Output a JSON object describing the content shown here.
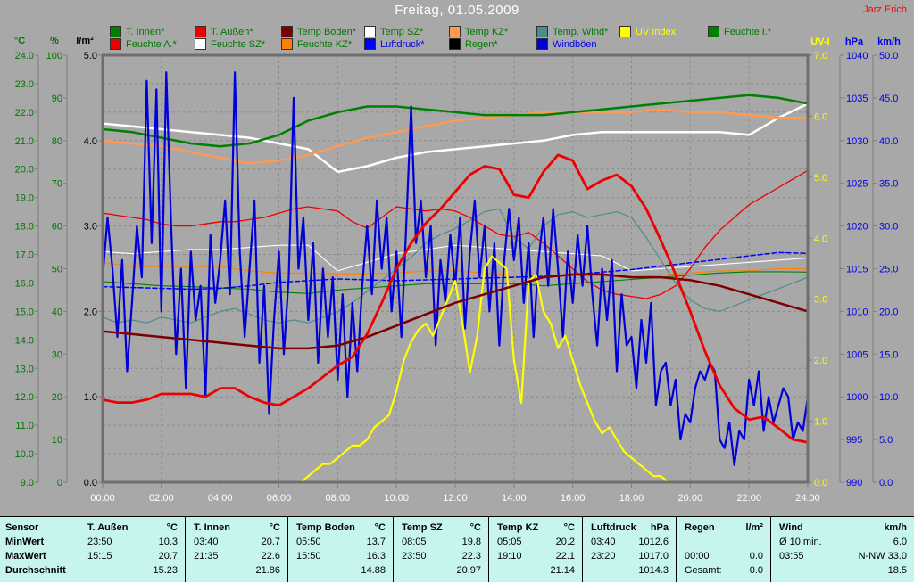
{
  "title": "Freitag, 01.05.2009",
  "watermark": "Jarz Erich",
  "colors": {
    "background": "#A8A8A8",
    "plot_border": "#6E6E6E",
    "grid": "#8A8A8A",
    "axis_line": "#7E7E7E",
    "x_label": "#FFFFFF",
    "legend_text": "#007800",
    "table_bg": "#C6F5EE",
    "title_text": "#FFFFFF",
    "watermark_text": "#FF0000"
  },
  "legend": {
    "rows": [
      [
        {
          "label": "T. Innen*",
          "color": "#008000",
          "text_color": "#007800"
        },
        {
          "label": "T. Außen*",
          "color": "#EE0000",
          "text_color": "#007800"
        },
        {
          "label": "Temp Boden*",
          "color": "#7C0000",
          "text_color": "#007800"
        },
        {
          "label": "Temp SZ*",
          "color": "#FFFFFF",
          "text_color": "#007800"
        },
        {
          "label": "Temp KZ*",
          "color": "#FF9955",
          "text_color": "#007800"
        },
        {
          "label": "Temp. Wind*",
          "color": "#4E8C8C",
          "text_color": "#007800"
        },
        {
          "label": "UV Index",
          "color": "#FFFF00",
          "text_color": "#FFFF00"
        },
        {
          "label": "Feuchte I.*",
          "color": "#008000",
          "text_color": "#007800"
        }
      ],
      [
        {
          "label": "Feuchte A.*",
          "color": "#EE0000",
          "text_color": "#007800"
        },
        {
          "label": "Feuchte SZ*",
          "color": "#FFFFFF",
          "text_color": "#007800"
        },
        {
          "label": "Feuchte KZ*",
          "color": "#FF8000",
          "text_color": "#007800"
        },
        {
          "label": "Luftdruck*",
          "color": "#0000FF",
          "text_color": "#0000E8"
        },
        {
          "label": "Regen*",
          "color": "#000000",
          "text_color": "#007800"
        },
        {
          "label": "Windböen",
          "color": "#0000D8",
          "text_color": "#0000E8"
        }
      ]
    ]
  },
  "chart_data": {
    "type": "line",
    "title": "Freitag, 01.05.2009",
    "grid": {
      "horizontal_follows": "tempC",
      "vertical_every_hours": 2,
      "dashed": true
    },
    "x_axis": {
      "min": 0,
      "max": 24,
      "step": 2,
      "labels": [
        "00:00",
        "02:00",
        "04:00",
        "06:00",
        "08:00",
        "10:00",
        "12:00",
        "14:00",
        "16:00",
        "18:00",
        "20:00",
        "22:00",
        "24:00"
      ]
    },
    "axes": {
      "tempC": {
        "header": "°C",
        "min": 9,
        "max": 24,
        "step": 1,
        "decimals": 1,
        "color": "#007800"
      },
      "pct": {
        "header": "%",
        "min": 0,
        "max": 100,
        "step": 10,
        "decimals": 0,
        "color": "#007800"
      },
      "lm2": {
        "header": "l/m²",
        "min": 0,
        "max": 5,
        "step": 1,
        "decimals": 1,
        "color": "#000000"
      },
      "uv": {
        "header": "UV-I",
        "min": 0,
        "max": 7,
        "step": 1,
        "decimals": 1,
        "color": "#FFFF00"
      },
      "hpa": {
        "header": "hPa",
        "min": 990,
        "max": 1040,
        "step": 5,
        "decimals": 0,
        "color": "#0000E8"
      },
      "kmh": {
        "header": "km/h",
        "min": 0,
        "max": 50,
        "step": 5,
        "decimals": 1,
        "color": "#0000E8"
      }
    },
    "series": [
      {
        "name": "Regen",
        "axis": "lm2",
        "color": "#000000",
        "width": 1.5,
        "interval_min": 1440,
        "values": [
          0,
          0
        ]
      },
      {
        "name": "Feuchte I.",
        "axis": "pct",
        "color": "#008000",
        "width": 1.1,
        "interval_min": 60,
        "values": [
          47,
          46.5,
          46,
          45.8,
          45.5,
          45.2,
          44.5,
          44.2,
          45,
          45.5,
          46,
          46.5,
          46.5,
          46.5,
          46.5,
          46,
          46.5,
          47,
          47.5,
          48,
          48.5,
          49,
          49.3,
          49.3,
          49.2
        ]
      },
      {
        "name": "Feuchte SZ",
        "axis": "pct",
        "color": "#FFFFFF",
        "width": 1.1,
        "interval_min": 60,
        "values": [
          54,
          53.5,
          54,
          54.5,
          54.5,
          55,
          55.5,
          55.5,
          49.5,
          51.5,
          53.5,
          54.5,
          55.5,
          55,
          54.5,
          54,
          53.5,
          53,
          49.5,
          50,
          50.5,
          51,
          51.5,
          52,
          52.5
        ]
      },
      {
        "name": "Feuchte KZ",
        "axis": "pct",
        "color": "#FF8000",
        "width": 1.1,
        "interval_min": 60,
        "values": [
          51.5,
          50.5,
          50.5,
          50.5,
          50.5,
          49.5,
          49,
          49,
          48.8,
          48.8,
          49,
          49.5,
          49.5,
          49,
          48.5,
          48.5,
          48.3,
          48.3,
          48,
          48.5,
          49,
          49.5,
          49.5,
          50,
          50
        ]
      },
      {
        "name": "Feuchte A.",
        "axis": "pct",
        "color": "#EE0000",
        "width": 1.3,
        "interval_min": 30,
        "values": [
          63,
          62.5,
          62,
          61.5,
          60.5,
          60,
          60,
          60.5,
          61,
          61,
          61.5,
          62,
          63,
          64,
          64.5,
          64,
          63.5,
          61,
          59.5,
          62,
          64.5,
          64,
          63.5,
          64,
          63.5,
          62,
          60,
          58,
          57.5,
          58.5,
          56,
          53,
          50,
          47,
          45,
          44,
          43.5,
          43,
          44,
          46,
          50,
          55,
          59,
          62,
          65,
          67,
          69,
          71,
          73
        ]
      },
      {
        "name": "Luftdruck",
        "axis": "hpa",
        "color": "#0000FF",
        "width": 1.5,
        "dash": "5 3",
        "interval_min": 60,
        "values": [
          1012.9,
          1012.8,
          1012.7,
          1012.6,
          1012.7,
          1013.0,
          1013.4,
          1013.6,
          1013.8,
          1013.7,
          1013.6,
          1013.7,
          1013.8,
          1013.9,
          1014.0,
          1014.1,
          1014.3,
          1014.6,
          1014.9,
          1015.3,
          1015.7,
          1016.1,
          1016.5,
          1016.9,
          1016.8
        ]
      },
      {
        "name": "Temp. Wind",
        "axis": "tempC",
        "color": "#4E8C8C",
        "width": 1.2,
        "interval_min": 30,
        "values": [
          14.8,
          14.6,
          14.7,
          14.6,
          14.8,
          14.7,
          14.6,
          14.8,
          15.0,
          15.1,
          14.9,
          14.7,
          14.6,
          14.7,
          14.6,
          14.8,
          15.0,
          15.3,
          15.7,
          16.1,
          16.5,
          16.9,
          17.4,
          17.7,
          17.9,
          18.2,
          18.5,
          18.6,
          17.6,
          17.2,
          18.0,
          18.4,
          18.5,
          18.3,
          18.4,
          18.5,
          18.3,
          17.6,
          16.8,
          16.0,
          15.4,
          15.1,
          15.0,
          15.2,
          15.4,
          15.6,
          15.8,
          16.0,
          16.2
        ]
      },
      {
        "name": "Temp SZ",
        "axis": "tempC",
        "color": "#FFFFFF",
        "width": 2.5,
        "interval_min": 60,
        "values": [
          21.6,
          21.5,
          21.4,
          21.3,
          21.2,
          21.1,
          20.9,
          20.7,
          19.9,
          20.1,
          20.4,
          20.6,
          20.7,
          20.8,
          20.9,
          21.0,
          21.2,
          21.3,
          21.3,
          21.3,
          21.3,
          21.3,
          21.2,
          21.8,
          22.3
        ]
      },
      {
        "name": "Temp KZ",
        "axis": "tempC",
        "color": "#FF9955",
        "width": 2.5,
        "interval_min": 60,
        "values": [
          21.0,
          20.9,
          20.8,
          20.6,
          20.4,
          20.2,
          20.3,
          20.5,
          20.8,
          21.1,
          21.3,
          21.5,
          21.7,
          21.8,
          21.9,
          22.0,
          22.0,
          22.0,
          22.0,
          22.1,
          22.0,
          22.0,
          21.9,
          21.8,
          21.8
        ]
      },
      {
        "name": "T. Innen",
        "axis": "tempC",
        "color": "#008000",
        "width": 2.5,
        "interval_min": 60,
        "values": [
          21.4,
          21.3,
          21.1,
          20.9,
          20.8,
          20.9,
          21.2,
          21.7,
          22.0,
          22.2,
          22.2,
          22.1,
          22.0,
          21.9,
          21.9,
          21.9,
          22.0,
          22.1,
          22.2,
          22.3,
          22.4,
          22.5,
          22.6,
          22.5,
          22.3
        ]
      },
      {
        "name": "Windböen",
        "axis": "kmh",
        "color": "#0000D8",
        "width": 2.2,
        "interval_min": 10,
        "values": [
          24,
          31,
          25,
          17,
          26,
          13,
          21,
          30,
          24,
          47,
          28,
          46,
          20,
          48,
          30,
          15,
          25,
          11,
          27,
          19,
          23,
          10,
          29,
          21,
          26,
          33,
          22,
          48,
          27,
          17,
          25,
          33,
          14,
          23,
          8,
          19,
          27,
          15,
          24,
          45,
          25,
          31,
          19,
          28,
          14,
          25,
          17,
          24,
          12,
          22,
          10,
          21,
          13,
          23,
          30,
          22,
          33,
          25,
          31,
          20,
          27,
          17,
          30,
          44,
          28,
          33,
          24,
          30,
          16,
          26,
          21,
          29,
          23,
          31,
          18,
          27,
          33,
          24,
          30,
          20,
          28,
          16,
          26,
          32,
          26,
          31,
          21,
          28,
          17,
          26,
          31,
          23,
          32,
          25,
          17,
          27,
          21,
          29,
          23,
          30,
          22,
          16,
          25,
          19,
          26,
          13,
          22,
          16,
          17,
          11,
          19,
          14,
          21,
          9,
          13,
          14,
          9,
          12,
          5,
          8,
          7,
          11,
          13,
          12,
          14,
          13,
          5,
          4,
          7,
          2,
          6,
          5,
          12,
          9,
          13,
          6,
          10,
          7,
          9,
          11,
          10,
          5,
          7,
          6,
          10
        ]
      },
      {
        "name": "UV Index",
        "axis": "uv",
        "color": "#FFFF00",
        "width": 2.2,
        "interval_min": 15,
        "values": [
          0,
          0,
          0,
          0,
          0,
          0,
          0,
          0,
          0,
          0,
          0,
          0,
          0,
          0,
          0,
          0,
          0,
          0,
          0,
          0,
          0,
          0,
          0,
          0,
          0,
          0,
          0,
          0,
          0.1,
          0.2,
          0.3,
          0.3,
          0.4,
          0.5,
          0.6,
          0.6,
          0.7,
          0.9,
          1.0,
          1.1,
          1.5,
          2.0,
          2.3,
          2.5,
          2.6,
          2.4,
          2.7,
          3.0,
          3.3,
          2.6,
          1.8,
          2.4,
          3.5,
          3.7,
          3.6,
          3.5,
          2.0,
          1.3,
          3.3,
          3.4,
          2.8,
          2.6,
          2.2,
          2.4,
          2.0,
          1.6,
          1.3,
          1.0,
          0.8,
          0.9,
          0.7,
          0.5,
          0.4,
          0.3,
          0.2,
          0.1,
          0.1,
          0,
          0,
          0,
          0,
          0,
          0,
          0,
          0,
          0,
          0,
          0,
          0,
          0,
          0,
          0,
          0,
          0,
          0,
          0,
          0
        ]
      },
      {
        "name": "Temp Boden",
        "axis": "tempC",
        "color": "#7C0000",
        "width": 2.5,
        "interval_min": 60,
        "values": [
          14.3,
          14.2,
          14.1,
          14.0,
          13.9,
          13.8,
          13.7,
          13.7,
          13.8,
          14.1,
          14.5,
          14.9,
          15.3,
          15.6,
          15.9,
          16.2,
          16.3,
          16.3,
          16.2,
          16.2,
          16.1,
          15.9,
          15.6,
          15.3,
          15.0
        ]
      },
      {
        "name": "T. Außen",
        "axis": "tempC",
        "color": "#EE0000",
        "width": 2.8,
        "interval_min": 30,
        "values": [
          11.9,
          11.8,
          11.8,
          11.9,
          12.1,
          12.1,
          12.1,
          12.0,
          12.3,
          12.3,
          12.0,
          11.8,
          11.7,
          12.0,
          12.3,
          12.7,
          13.1,
          13.4,
          14.2,
          15.3,
          16.5,
          17.4,
          18.1,
          18.6,
          19.2,
          19.8,
          20.1,
          20.0,
          19.1,
          19.0,
          19.9,
          20.5,
          20.3,
          19.3,
          19.6,
          19.8,
          19.4,
          18.6,
          17.5,
          16.3,
          15.0,
          13.6,
          12.4,
          11.6,
          11.2,
          11.3,
          10.9,
          10.5,
          10.4
        ]
      }
    ]
  },
  "table": {
    "row_labels": [
      "Sensor",
      "MinWert",
      "MaxWert",
      "Durchschnitt"
    ],
    "columns": [
      {
        "name": "T. Außen",
        "unit": "°C",
        "min": [
          "23:50",
          "10.3"
        ],
        "max": [
          "15:15",
          "20.7"
        ],
        "avg": [
          "",
          "15.23"
        ]
      },
      {
        "name": "T. Innen",
        "unit": "°C",
        "min": [
          "03:40",
          "20.7"
        ],
        "max": [
          "21:35",
          "22.6"
        ],
        "avg": [
          "",
          "21.86"
        ]
      },
      {
        "name": "Temp Boden",
        "unit": "°C",
        "min": [
          "05:50",
          "13.7"
        ],
        "max": [
          "15:50",
          "16.3"
        ],
        "avg": [
          "",
          "14.88"
        ]
      },
      {
        "name": "Temp SZ",
        "unit": "°C",
        "min": [
          "08:05",
          "19.8"
        ],
        "max": [
          "23:50",
          "22.3"
        ],
        "avg": [
          "",
          "20.97"
        ]
      },
      {
        "name": "Temp KZ",
        "unit": "°C",
        "min": [
          "05:05",
          "20.2"
        ],
        "max": [
          "19:10",
          "22.1"
        ],
        "avg": [
          "",
          "21.14"
        ]
      },
      {
        "name": "Luftdruck",
        "unit": "hPa",
        "min": [
          "03:40",
          "1012.6"
        ],
        "max": [
          "23:20",
          "1017.0"
        ],
        "avg": [
          "",
          "1014.3"
        ]
      },
      {
        "name": "Regen",
        "unit": "l/m²",
        "min": [
          "",
          ""
        ],
        "max": [
          "00:00",
          "0.0"
        ],
        "avg": [
          "Gesamt:",
          "0.0"
        ]
      },
      {
        "name": "Wind",
        "unit": "km/h",
        "min": [
          "Ø 10 min.",
          "6.0"
        ],
        "max": [
          "03:55",
          "N-NW 33.0"
        ],
        "avg": [
          "",
          "18.5"
        ]
      }
    ]
  }
}
